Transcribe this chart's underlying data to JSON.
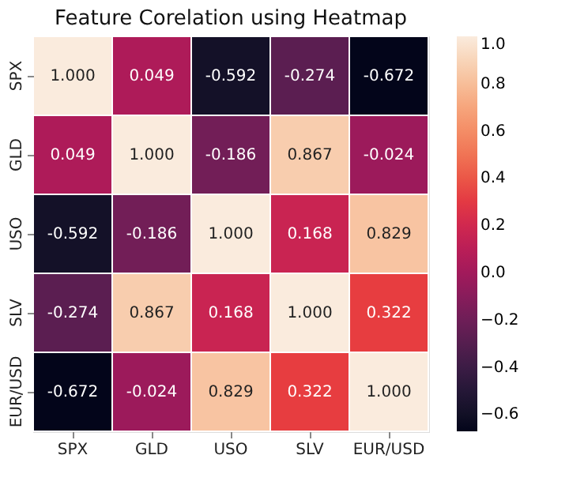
{
  "chart_data": {
    "type": "heatmap",
    "title": "Feature Corelation using Heatmap",
    "categories": [
      "SPX",
      "GLD",
      "USO",
      "SLV",
      "EUR/USD"
    ],
    "y_categories": [
      "SPX",
      "GLD",
      "USO",
      "SLV",
      "EUR/USD"
    ],
    "cells": [
      [
        1.0,
        0.049,
        -0.592,
        -0.274,
        -0.672
      ],
      [
        0.049,
        1.0,
        -0.186,
        0.867,
        -0.024
      ],
      [
        -0.592,
        -0.186,
        1.0,
        0.168,
        0.829
      ],
      [
        -0.274,
        0.867,
        0.168,
        1.0,
        0.322
      ],
      [
        -0.672,
        -0.024,
        0.829,
        0.322,
        1.0
      ]
    ],
    "cell_labels": [
      [
        "1.000",
        "0.049",
        "-0.592",
        "-0.274",
        "-0.672"
      ],
      [
        "0.049",
        "1.000",
        "-0.186",
        "0.867",
        "-0.024"
      ],
      [
        "-0.592",
        "-0.186",
        "1.000",
        "0.168",
        "0.829"
      ],
      [
        "-0.274",
        "0.867",
        "0.168",
        "1.000",
        "0.322"
      ],
      [
        "-0.672",
        "-0.024",
        "0.829",
        "0.322",
        "1.000"
      ]
    ],
    "clim": [
      -0.672,
      1.0
    ],
    "cticks": [
      {
        "value": -0.6,
        "label": "−0.6"
      },
      {
        "value": -0.4,
        "label": "−0.4"
      },
      {
        "value": -0.2,
        "label": "−0.2"
      },
      {
        "value": 0,
        "label": "0.0"
      },
      {
        "value": 0.2,
        "label": "0.2"
      },
      {
        "value": 0.4,
        "label": "0.4"
      },
      {
        "value": 0.6,
        "label": "0.6"
      },
      {
        "value": 0.8,
        "label": "0.8"
      },
      {
        "value": 1.0,
        "label": "1.0"
      }
    ]
  }
}
